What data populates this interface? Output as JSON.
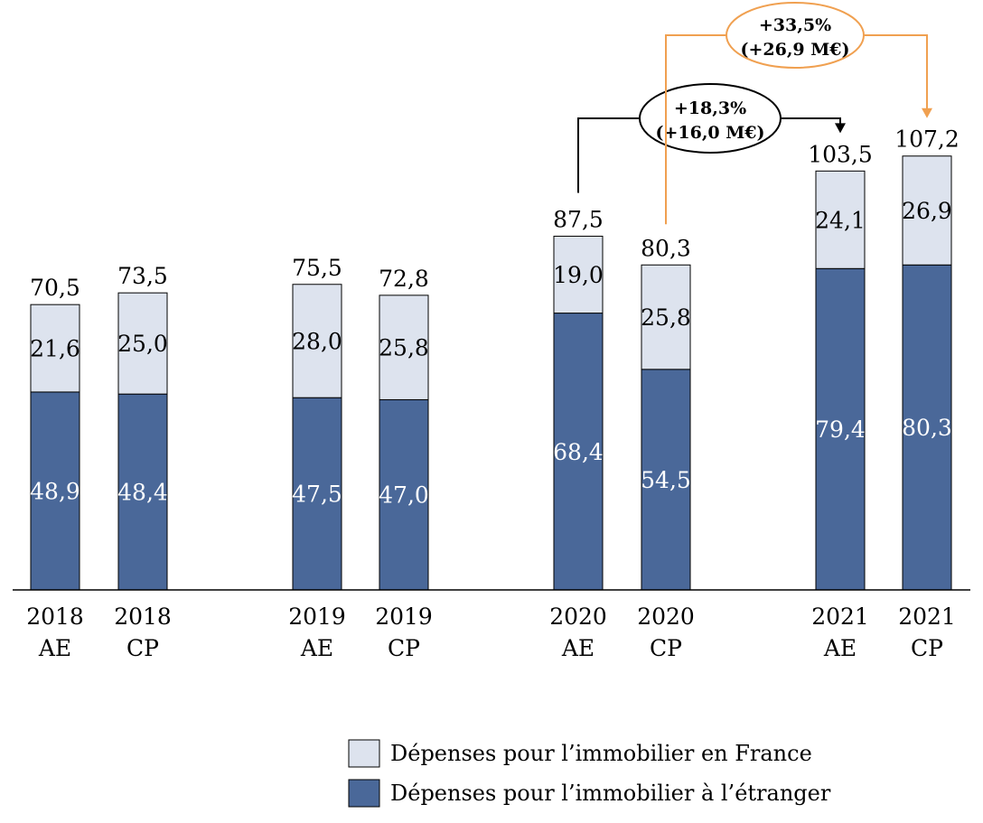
{
  "chart_data": {
    "type": "bar",
    "stacked": true,
    "categories": [
      [
        "2018",
        "AE"
      ],
      [
        "2018",
        "CP"
      ],
      [
        "2019",
        "AE"
      ],
      [
        "2019",
        "CP"
      ],
      [
        "2020",
        "AE"
      ],
      [
        "2020",
        "CP"
      ],
      [
        "2021",
        "AE"
      ],
      [
        "2021",
        "CP"
      ]
    ],
    "groups": [
      [
        0,
        1
      ],
      [
        2,
        3
      ],
      [
        4,
        5
      ],
      [
        6,
        7
      ]
    ],
    "totals": [
      "70,5",
      "73,5",
      "75,5",
      "72,8",
      "87,5",
      "80,3",
      "103,5",
      "107,2"
    ],
    "series": [
      {
        "name": "Dépenses pour l’immobilier à l’étranger",
        "color": "#4a6899",
        "label_color": "#ffffff",
        "values": [
          48.9,
          48.4,
          47.5,
          47.0,
          68.4,
          54.5,
          79.4,
          80.3
        ],
        "labels": [
          "48,9",
          "48,4",
          "47,5",
          "47,0",
          "68,4",
          "54,5",
          "79,4",
          "80,3"
        ]
      },
      {
        "name": "Dépenses pour l’immobilier en France",
        "color": "#dde3ee",
        "label_color": "#000000",
        "values": [
          21.6,
          25.0,
          28.0,
          25.8,
          19.0,
          25.8,
          24.1,
          26.9
        ],
        "labels": [
          "21,6",
          "25,0",
          "28,0",
          "25,8",
          "19,0",
          "25,8",
          "24,1",
          "26,9"
        ]
      }
    ],
    "annotations": [
      {
        "from": 4,
        "to": 6,
        "line1": "+18,3%",
        "line2": "(+16,0 M€)",
        "color": "#000000"
      },
      {
        "from": 5,
        "to": 7,
        "line1": "+33,5%",
        "line2": "(+26,9 M€)",
        "color": "#f0a050"
      }
    ],
    "legend": {
      "placement": "bottom-right",
      "order": [
        1,
        0
      ]
    },
    "ylim": [
      0,
      115
    ],
    "grid": false
  }
}
